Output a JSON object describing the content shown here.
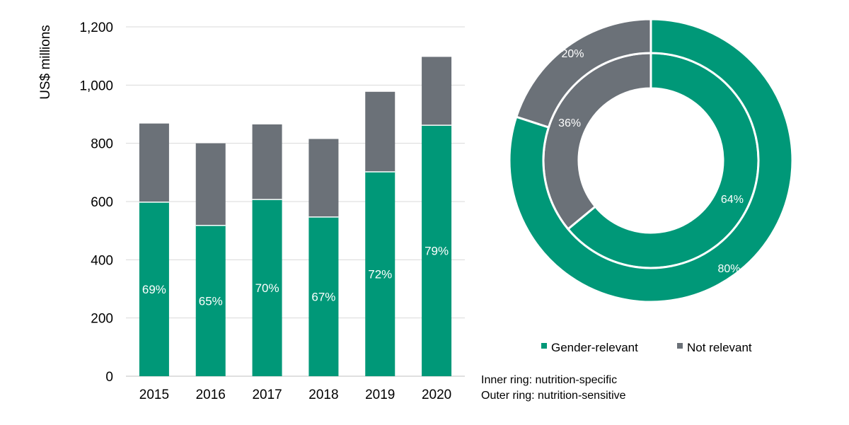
{
  "colors": {
    "gender_relevant": "#009878",
    "not_relevant": "#6b7178",
    "grid": "#d9d9d9",
    "axis": "#bfbfbf",
    "separator": "#ffffff"
  },
  "chart_data": [
    {
      "type": "bar",
      "stacked": true,
      "ylabel": "US$ millions",
      "ylim": [
        0,
        1200
      ],
      "yticks": [
        0,
        200,
        400,
        600,
        800,
        1000,
        1200
      ],
      "ytick_labels": [
        "0",
        "200",
        "400",
        "600",
        "800",
        "1,000",
        "1,200"
      ],
      "grid": true,
      "categories": [
        "2015",
        "2016",
        "2017",
        "2018",
        "2019",
        "2020"
      ],
      "series": [
        {
          "name": "Gender-relevant",
          "values": [
            598,
            518,
            607,
            547,
            702,
            862
          ]
        },
        {
          "name": "Not relevant",
          "values": [
            270,
            282,
            258,
            268,
            275,
            235
          ]
        }
      ],
      "data_labels": [
        "69%",
        "65%",
        "70%",
        "67%",
        "72%",
        "79%"
      ]
    },
    {
      "type": "pie",
      "variant": "double-donut",
      "rings": [
        {
          "ring": "inner",
          "slices": [
            {
              "name": "Gender-relevant",
              "value": 64,
              "label": "64%"
            },
            {
              "name": "Not relevant",
              "value": 36,
              "label": "36%"
            }
          ]
        },
        {
          "ring": "outer",
          "slices": [
            {
              "name": "Gender-relevant",
              "value": 80,
              "label": "80%"
            },
            {
              "name": "Not relevant",
              "value": 20,
              "label": "20%"
            }
          ]
        }
      ],
      "legend": {
        "position": "bottom",
        "items": [
          {
            "name": "Gender-relevant",
            "color": "#009878"
          },
          {
            "name": "Not relevant",
            "color": "#6b7178"
          }
        ]
      },
      "notes": [
        "Inner ring: nutrition-specific",
        "Outer ring: nutrition-sensitive"
      ]
    }
  ]
}
